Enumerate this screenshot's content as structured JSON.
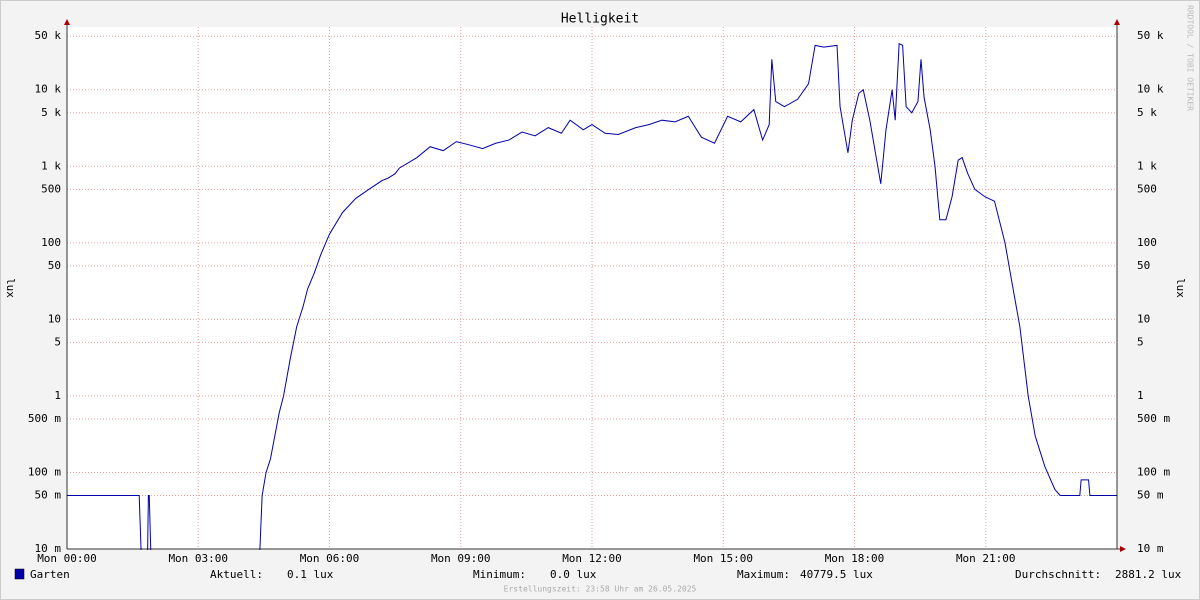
{
  "chart_data": {
    "type": "line",
    "title": "Helligkeit",
    "y_label": "lux",
    "y_scale": "log",
    "grid": true,
    "watermark": "RRDTOOL / TOBI OETIKER",
    "footer": "Erstellungszeit: 23:58 Uhr am 26.05.2025",
    "xlim": [
      0,
      24
    ],
    "xticks": [
      {
        "value": 0,
        "label": "Mon 00:00"
      },
      {
        "value": 3,
        "label": "Mon 03:00"
      },
      {
        "value": 6,
        "label": "Mon 06:00"
      },
      {
        "value": 9,
        "label": "Mon 09:00"
      },
      {
        "value": 12,
        "label": "Mon 12:00"
      },
      {
        "value": 15,
        "label": "Mon 15:00"
      },
      {
        "value": 18,
        "label": "Mon 18:00"
      },
      {
        "value": 21,
        "label": "Mon 21:00"
      }
    ],
    "ylim": [
      0.01,
      66000
    ],
    "yticks": [
      {
        "value": 0.01,
        "label": "10 m"
      },
      {
        "value": 0.05,
        "label": "50 m"
      },
      {
        "value": 0.1,
        "label": "100 m"
      },
      {
        "value": 0.5,
        "label": "500 m"
      },
      1,
      5,
      10,
      50,
      100,
      500,
      {
        "value": 1000,
        "label": "1 k"
      },
      {
        "value": 5000,
        "label": "5 k"
      },
      {
        "value": 10000,
        "label": "10 k"
      },
      {
        "value": 50000,
        "label": "50 k"
      }
    ],
    "x": [
      0,
      1.65,
      1.7,
      1.84,
      1.86,
      1.88,
      1.92,
      4.4,
      4.46,
      4.55,
      4.65,
      4.75,
      4.85,
      4.95,
      5.1,
      5.25,
      5.4,
      5.5,
      5.65,
      5.8,
      6.0,
      6.3,
      6.6,
      6.9,
      7.2,
      7.34,
      7.5,
      7.6,
      8.0,
      8.3,
      8.6,
      8.9,
      9.2,
      9.5,
      9.8,
      10.1,
      10.4,
      10.7,
      11.0,
      11.3,
      11.5,
      11.8,
      12.0,
      12.3,
      12.6,
      13.0,
      13.3,
      13.6,
      13.9,
      14.2,
      14.5,
      14.8,
      15.1,
      15.4,
      15.7,
      15.9,
      16.05,
      16.11,
      16.2,
      16.4,
      16.7,
      16.95,
      17.1,
      17.3,
      17.6,
      17.67,
      17.85,
      17.95,
      18.1,
      18.2,
      18.35,
      18.6,
      18.72,
      18.86,
      18.93,
      19.02,
      19.1,
      19.18,
      19.31,
      19.45,
      19.52,
      19.59,
      19.73,
      19.84,
      19.95,
      20.09,
      20.23,
      20.37,
      20.46,
      20.59,
      20.75,
      20.98,
      21.2,
      21.44,
      21.6,
      21.78,
      21.97,
      22.13,
      22.35,
      22.58,
      22.7,
      23.15,
      23.18,
      23.35,
      23.38,
      24
    ],
    "series": [
      {
        "name": "Garten",
        "color": "#0000aa",
        "values": [
          0.05,
          0.05,
          0,
          0,
          0.05,
          0.05,
          0,
          0,
          0.05,
          0.1,
          0.15,
          0.3,
          0.6,
          1,
          3,
          8,
          15,
          25,
          40,
          70,
          130,
          250,
          380,
          500,
          650,
          700,
          800,
          950,
          1300,
          1800,
          1600,
          2100,
          1900,
          1700,
          2000,
          2200,
          2800,
          2500,
          3200,
          2700,
          4000,
          3000,
          3500,
          2700,
          2600,
          3200,
          3500,
          4000,
          3800,
          4500,
          2400,
          2000,
          4500,
          3800,
          5500,
          2200,
          3500,
          25000,
          7000,
          6000,
          7500,
          12000,
          38000,
          36000,
          38000,
          6000,
          1500,
          4000,
          9000,
          10000,
          4000,
          590,
          3000,
          10000,
          4000,
          40000,
          38000,
          6000,
          5000,
          7000,
          25000,
          8000,
          3000,
          1000,
          200,
          200,
          400,
          1200,
          1300,
          800,
          500,
          400,
          350,
          100,
          30,
          8,
          1,
          0.3,
          0.12,
          0.06,
          0.05,
          0.05,
          0.08,
          0.08,
          0.05,
          0.05
        ]
      }
    ],
    "legend_stats": [
      {
        "label": "Aktuell:",
        "value": "0.1 lux"
      },
      {
        "label": "Minimum:",
        "value": "0.0 lux"
      },
      {
        "label": "Maximum:",
        "value": "40779.5 lux"
      },
      {
        "label": "Durchschnitt:",
        "value": "2881.2 lux"
      }
    ]
  }
}
